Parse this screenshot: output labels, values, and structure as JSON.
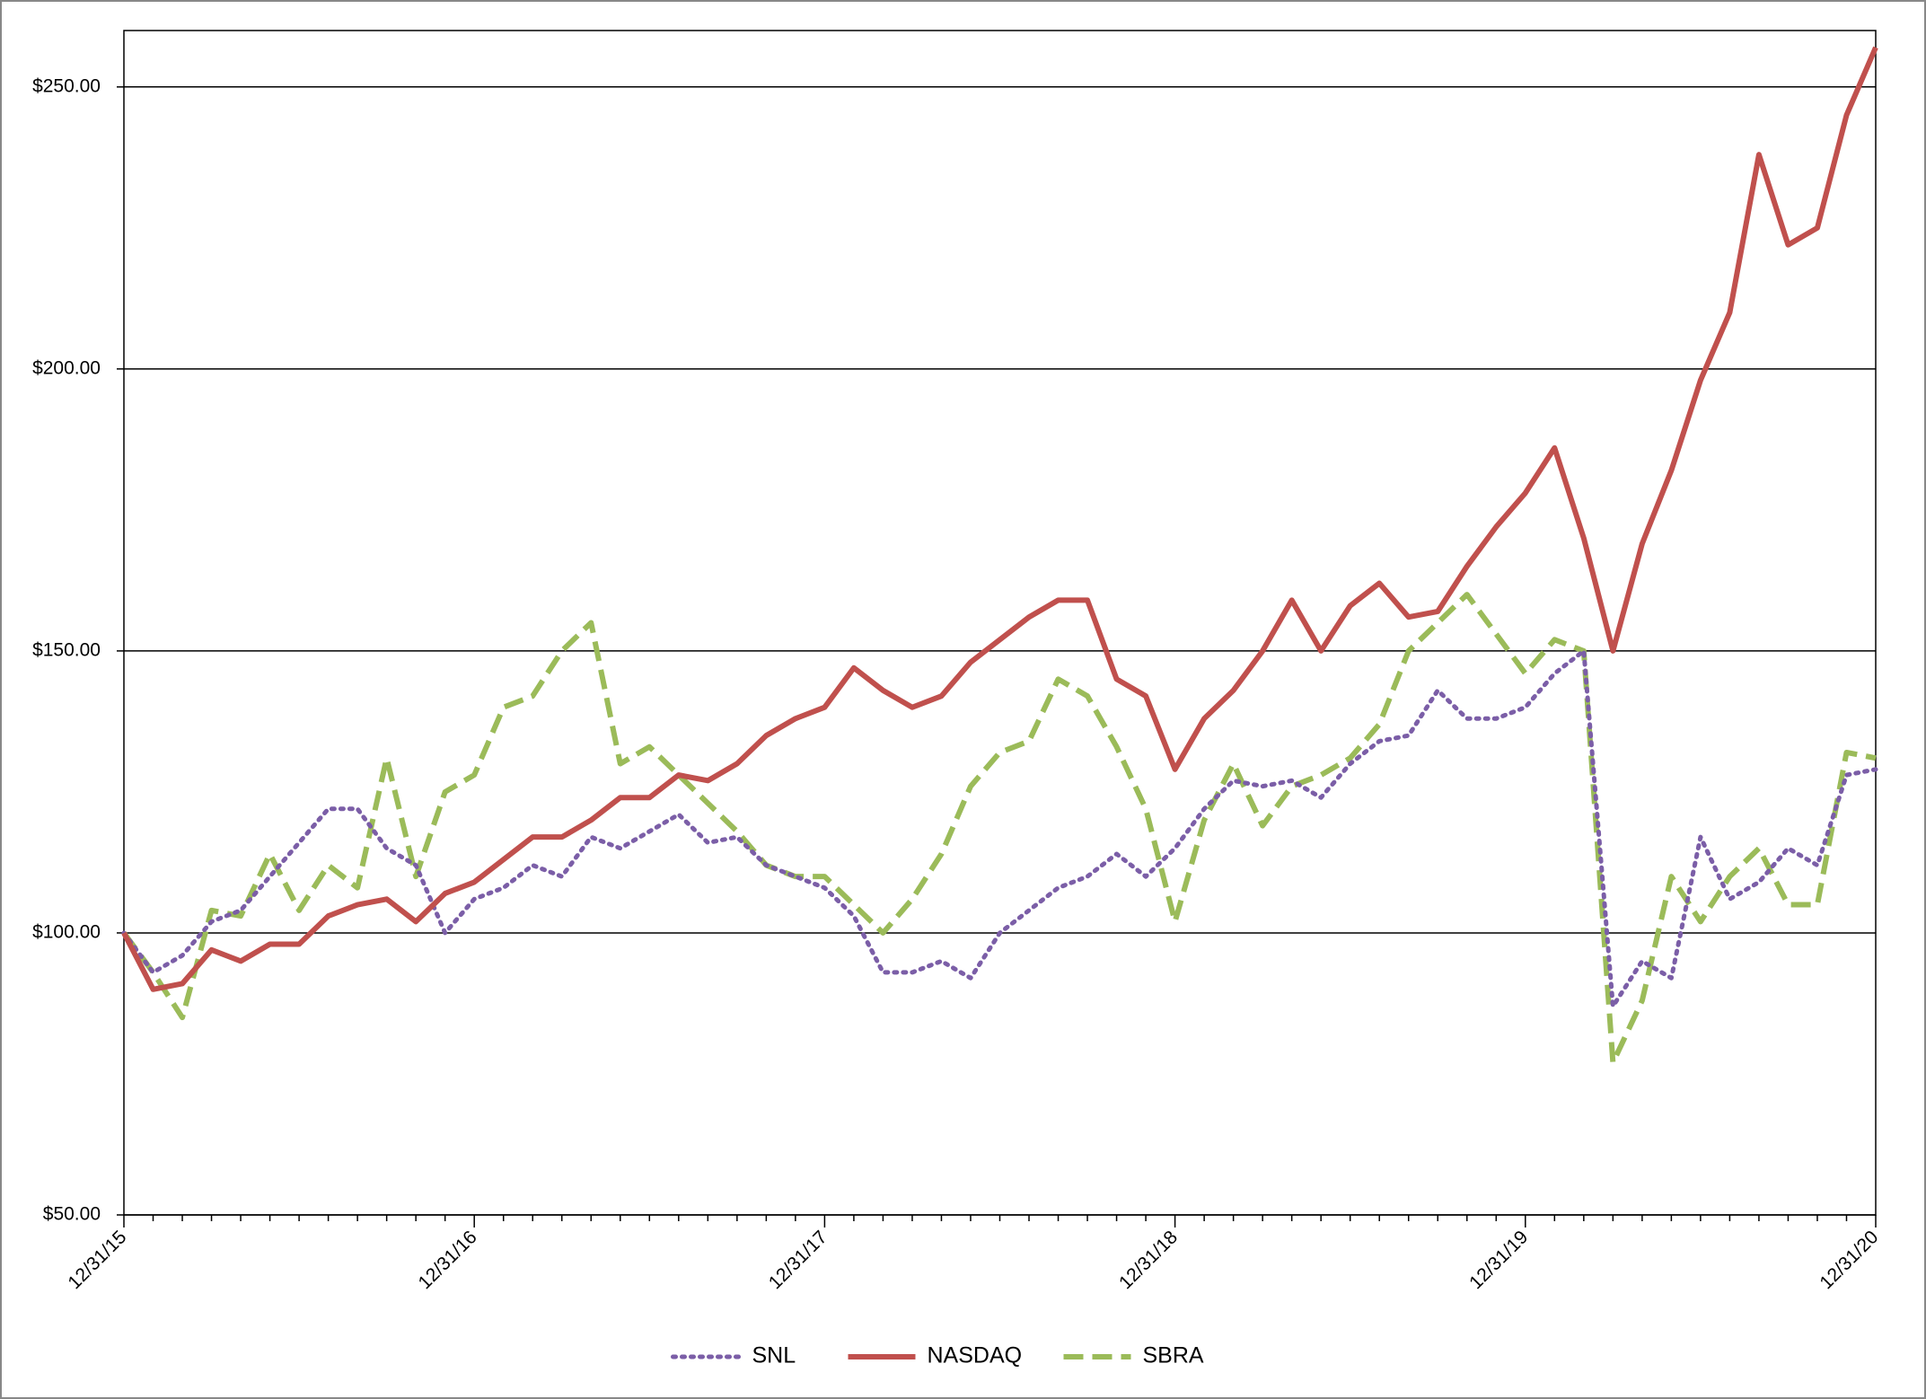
{
  "chart_data": {
    "type": "line",
    "categories": [
      "12/31/15",
      null,
      null,
      null,
      null,
      null,
      null,
      null,
      null,
      null,
      null,
      null,
      "12/31/16",
      null,
      null,
      null,
      null,
      null,
      null,
      null,
      null,
      null,
      null,
      null,
      "12/31/17",
      null,
      null,
      null,
      null,
      null,
      null,
      null,
      null,
      null,
      null,
      null,
      "12/31/18",
      null,
      null,
      null,
      null,
      null,
      null,
      null,
      null,
      null,
      null,
      null,
      "12/31/19",
      null,
      null,
      null,
      null,
      null,
      null,
      null,
      null,
      null,
      null,
      null,
      "12/31/20"
    ],
    "series": [
      {
        "name": "SNL",
        "color": "#7b5ea7",
        "style": "dotted",
        "values": [
          100,
          93,
          96,
          102,
          104,
          110,
          116,
          122,
          122,
          115,
          112,
          100,
          106,
          108,
          112,
          110,
          117,
          115,
          118,
          121,
          116,
          117,
          112,
          110,
          108,
          103,
          93,
          93,
          95,
          92,
          100,
          104,
          108,
          110,
          114,
          110,
          115,
          122,
          127,
          126,
          127,
          124,
          130,
          134,
          135,
          143,
          138,
          138,
          140,
          146,
          150,
          87,
          95,
          92,
          117,
          106,
          109,
          115,
          112,
          128,
          129
        ]
      },
      {
        "name": "NASDAQ",
        "color": "#c0504d",
        "style": "solid",
        "values": [
          100,
          90,
          91,
          97,
          95,
          98,
          98,
          103,
          105,
          106,
          102,
          107,
          109,
          113,
          117,
          117,
          120,
          124,
          124,
          128,
          127,
          130,
          135,
          138,
          140,
          147,
          143,
          140,
          142,
          148,
          152,
          156,
          159,
          159,
          145,
          142,
          129,
          138,
          143,
          150,
          159,
          150,
          158,
          162,
          156,
          157,
          165,
          172,
          178,
          186,
          170,
          150,
          169,
          182,
          198,
          210,
          238,
          222,
          225,
          245,
          257
        ]
      },
      {
        "name": "SBRA",
        "color": "#9bbb59",
        "style": "dashed",
        "values": [
          100,
          93,
          85,
          104,
          103,
          114,
          104,
          112,
          108,
          131,
          110,
          125,
          128,
          140,
          142,
          150,
          155,
          130,
          133,
          128,
          123,
          118,
          112,
          110,
          110,
          105,
          100,
          106,
          114,
          126,
          132,
          134,
          145,
          142,
          133,
          122,
          102,
          120,
          130,
          119,
          126,
          128,
          131,
          137,
          150,
          155,
          160,
          153,
          146,
          152,
          150,
          77,
          88,
          110,
          102,
          110,
          115,
          105,
          105,
          132,
          131
        ]
      }
    ],
    "ylim": [
      50,
      260
    ],
    "yticks": [
      {
        "value": 50,
        "label": "$50.00"
      },
      {
        "value": 100,
        "label": "$100.00"
      },
      {
        "value": 150,
        "label": "$150.00"
      },
      {
        "value": 200,
        "label": "$200.00"
      },
      {
        "value": 250,
        "label": "$250.00"
      }
    ],
    "grid": true,
    "legend": "bottom"
  }
}
